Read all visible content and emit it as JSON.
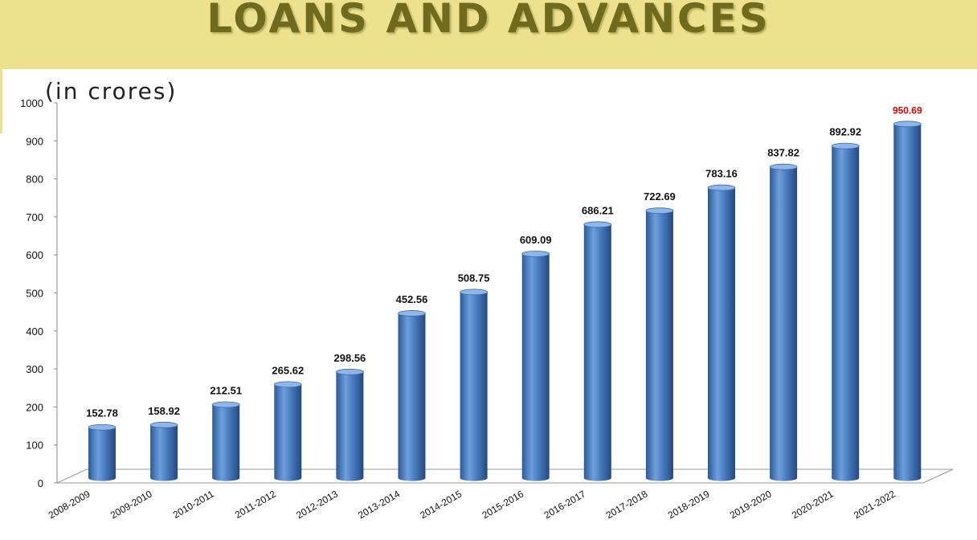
{
  "header": {
    "title": "LOANS AND ADVANCES",
    "unit_label": "(in crores)"
  },
  "colors": {
    "banner": "#ede190",
    "title_text": "#6f6a1e",
    "bar_body": "#4a7cc0",
    "highlight_label": "#e00000"
  },
  "chart_data": {
    "type": "bar",
    "title": "LOANS AND ADVANCES",
    "ylabel": "(in crores)",
    "xlabel": "",
    "ylim": [
      0,
      1000
    ],
    "yticks": [
      0,
      100,
      200,
      300,
      400,
      500,
      600,
      700,
      800,
      900,
      1000
    ],
    "categories": [
      "2008-2009",
      "2009-2010",
      "2010-2011",
      "2011-2012",
      "2012-2013",
      "2013-2014",
      "2014-2015",
      "2015-2016",
      "2016-2017",
      "2017-2018",
      "2018-2019",
      "2019-2020",
      "2020-2021",
      "2021-2022"
    ],
    "values": [
      152.78,
      158.92,
      212.51,
      265.62,
      298.56,
      452.56,
      508.75,
      609.09,
      686.21,
      722.69,
      783.16,
      837.82,
      892.92,
      950.69
    ],
    "data_labels": [
      "152.78",
      "158.92",
      "212.51",
      "265.62",
      "298.56",
      "452.56",
      "508.75",
      "609.09",
      "686.21",
      "722.69",
      "783.16",
      "837.82",
      "892.92",
      "950.69"
    ],
    "highlighted_label": "950.69",
    "style": "3d-cylinder",
    "grid": false,
    "legend": "none"
  }
}
